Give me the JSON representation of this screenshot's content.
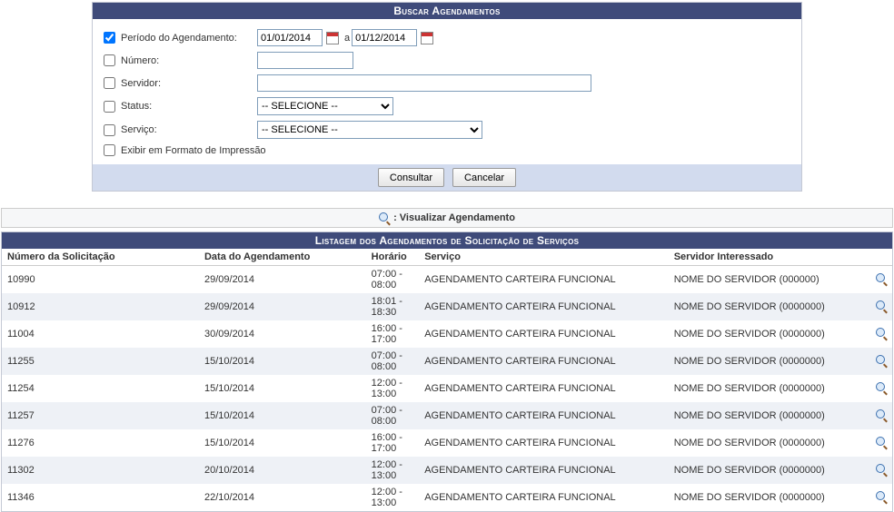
{
  "search": {
    "title": "Buscar Agendamentos",
    "periodo_label": "Período do Agendamento:",
    "periodo_checked": true,
    "date_from": "01/01/2014",
    "date_sep": "a",
    "date_to": "01/12/2014",
    "numero_label": "Número:",
    "numero_value": "",
    "servidor_label": "Servidor:",
    "servidor_value": "",
    "status_label": "Status:",
    "status_value": "-- SELECIONE --",
    "servico_label": "Serviço:",
    "servico_value": "-- SELECIONE --",
    "print_label": "Exibir em Formato de Impressão",
    "consultar": "Consultar",
    "cancelar": "Cancelar"
  },
  "legend": {
    "text": ": Visualizar Agendamento"
  },
  "listing": {
    "title": "Listagem dos Agendamentos de Solicitação de Serviços",
    "columns": {
      "numero": "Número da Solicitação",
      "data": "Data do Agendamento",
      "horario": "Horário",
      "servico": "Serviço",
      "servidor": "Servidor Interessado"
    },
    "rows": [
      {
        "numero": "10990",
        "data": "29/09/2014",
        "horario": "07:00 - 08:00",
        "servico": "AGENDAMENTO CARTEIRA FUNCIONAL",
        "servidor": "NOME DO SERVIDOR (000000)"
      },
      {
        "numero": "10912",
        "data": "29/09/2014",
        "horario": "18:01 - 18:30",
        "servico": "AGENDAMENTO CARTEIRA FUNCIONAL",
        "servidor": "NOME DO SERVIDOR (0000000)"
      },
      {
        "numero": "11004",
        "data": "30/09/2014",
        "horario": "16:00 - 17:00",
        "servico": "AGENDAMENTO CARTEIRA FUNCIONAL",
        "servidor": "NOME DO SERVIDOR (0000000)"
      },
      {
        "numero": "11255",
        "data": "15/10/2014",
        "horario": "07:00 - 08:00",
        "servico": "AGENDAMENTO CARTEIRA FUNCIONAL",
        "servidor": "NOME DO SERVIDOR (0000000)"
      },
      {
        "numero": "11254",
        "data": "15/10/2014",
        "horario": "12:00 - 13:00",
        "servico": "AGENDAMENTO CARTEIRA FUNCIONAL",
        "servidor": "NOME DO SERVIDOR (0000000)"
      },
      {
        "numero": "11257",
        "data": "15/10/2014",
        "horario": "07:00 - 08:00",
        "servico": "AGENDAMENTO CARTEIRA FUNCIONAL",
        "servidor": "NOME DO SERVIDOR (0000000)"
      },
      {
        "numero": "11276",
        "data": "15/10/2014",
        "horario": "16:00 - 17:00",
        "servico": "AGENDAMENTO CARTEIRA FUNCIONAL",
        "servidor": "NOME DO SERVIDOR (0000000)"
      },
      {
        "numero": "11302",
        "data": "20/10/2014",
        "horario": "12:00 - 13:00",
        "servico": "AGENDAMENTO CARTEIRA FUNCIONAL",
        "servidor": "NOME DO SERVIDOR (0000000)"
      },
      {
        "numero": "11346",
        "data": "22/10/2014",
        "horario": "12:00 - 13:00",
        "servico": "AGENDAMENTO CARTEIRA FUNCIONAL",
        "servidor": "NOME DO SERVIDOR (0000000)"
      }
    ]
  },
  "colors": {
    "header_bg": "#3f4b7a",
    "footer_bg": "#d2dbee",
    "row_alt_bg": "#eef1f6",
    "border": "#c4c8d4"
  }
}
